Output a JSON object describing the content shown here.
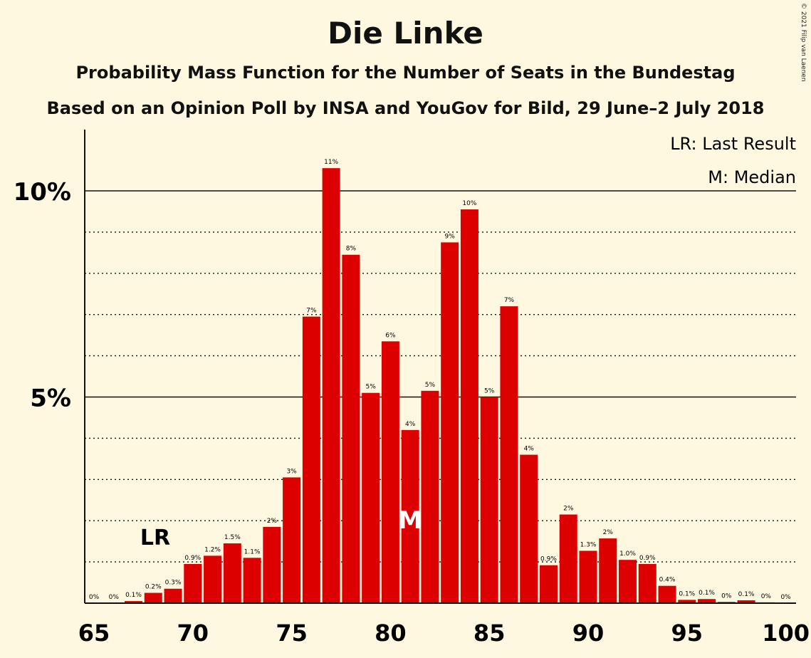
{
  "title": "Die Linke",
  "subtitle_line1": "Probability Mass Function for the Number of Seats in the Bundestag",
  "subtitle_line2": "Based on an Opinion Poll by INSA and YouGov for Bild, 29 June–2 July 2018",
  "copyright": "© 2021 Filip van Laenen",
  "legend": {
    "last_result": "LR: Last Result",
    "median": "M: Median"
  },
  "colors": {
    "background": "#fff8e1",
    "bar": "#dd0000"
  },
  "chart_data": {
    "type": "bar",
    "x": [
      65,
      66,
      67,
      68,
      69,
      70,
      71,
      72,
      73,
      74,
      75,
      76,
      77,
      78,
      79,
      80,
      81,
      82,
      83,
      84,
      85,
      86,
      87,
      88,
      89,
      90,
      91,
      92,
      93,
      94,
      95,
      96,
      97,
      98,
      99,
      100
    ],
    "values": [
      0,
      0,
      0.05,
      0.25,
      0.35,
      0.95,
      1.15,
      1.45,
      1.1,
      1.85,
      3.05,
      6.95,
      10.55,
      8.45,
      5.1,
      6.35,
      4.2,
      5.15,
      8.75,
      9.55,
      5.0,
      7.2,
      3.6,
      0.92,
      2.15,
      1.27,
      1.57,
      1.05,
      0.95,
      0.42,
      0.08,
      0.1,
      0.03,
      0.07,
      0.02,
      0
    ],
    "labels": [
      "0%",
      "0%",
      "0.1%",
      "0.2%",
      "0.3%",
      "0.9%",
      "1.2%",
      "1.5%",
      "1.1%",
      "2%",
      "3%",
      "7%",
      "11%",
      "8%",
      "5%",
      "6%",
      "4%",
      "5%",
      "9%",
      "10%",
      "5%",
      "7%",
      "4%",
      "0.9%",
      "2%",
      "1.3%",
      "2%",
      "1.0%",
      "0.9%",
      "0.4%",
      "0.1%",
      "0.1%",
      "0%",
      "0.1%",
      "0%",
      "0%"
    ],
    "xticks": [
      "65",
      "70",
      "75",
      "80",
      "85",
      "90",
      "95",
      "100"
    ],
    "yticks": [
      "5%",
      "10%"
    ],
    "ylim": [
      0,
      11.5
    ],
    "grid": "dotted every 1%, solid at 5% and 10%",
    "last_result": {
      "seat": 69,
      "label": "LR"
    },
    "median": {
      "seat": 81,
      "label": "M"
    }
  }
}
